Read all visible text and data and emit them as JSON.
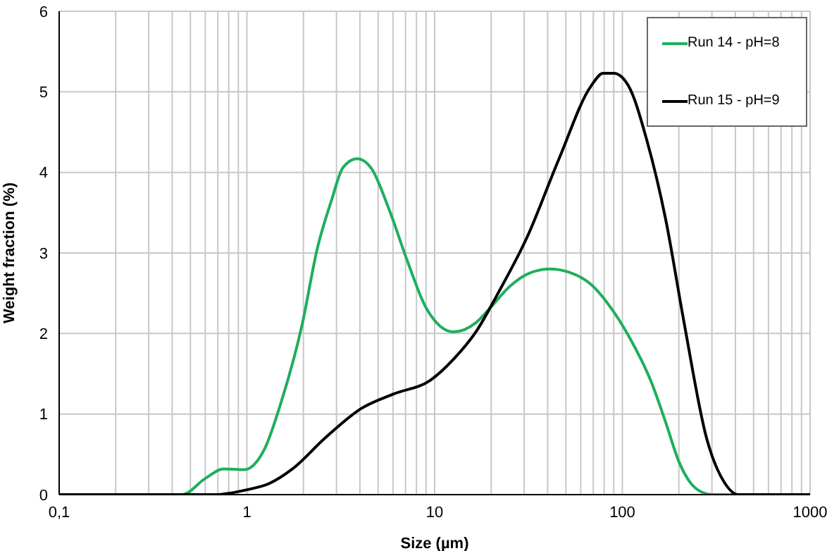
{
  "chart_data": {
    "type": "line",
    "xlabel": "Size (µm)",
    "ylabel": "Weight fraction (%)",
    "log": "x",
    "xlim": [
      0.1,
      1000
    ],
    "xticks": [
      {
        "value": 0.1,
        "label": "0,1"
      },
      {
        "value": 0.2,
        "label": null
      },
      {
        "value": 0.3,
        "label": null
      },
      {
        "value": 0.4,
        "label": null
      },
      {
        "value": 0.5,
        "label": null
      },
      {
        "value": 0.6,
        "label": null
      },
      {
        "value": 0.7,
        "label": null
      },
      {
        "value": 0.8,
        "label": null
      },
      {
        "value": 0.9,
        "label": null
      },
      1,
      {
        "value": 2,
        "label": null
      },
      {
        "value": 3,
        "label": null
      },
      {
        "value": 4,
        "label": null
      },
      {
        "value": 5,
        "label": null
      },
      {
        "value": 6,
        "label": null
      },
      {
        "value": 7,
        "label": null
      },
      {
        "value": 8,
        "label": null
      },
      {
        "value": 9,
        "label": null
      },
      10,
      {
        "value": 20,
        "label": null
      },
      {
        "value": 30,
        "label": null
      },
      {
        "value": 40,
        "label": null
      },
      {
        "value": 50,
        "label": null
      },
      {
        "value": 60,
        "label": null
      },
      {
        "value": 70,
        "label": null
      },
      {
        "value": 80,
        "label": null
      },
      {
        "value": 90,
        "label": null
      },
      100,
      {
        "value": 200,
        "label": null
      },
      {
        "value": 300,
        "label": null
      },
      {
        "value": 400,
        "label": null
      },
      {
        "value": 500,
        "label": null
      },
      {
        "value": 600,
        "label": null
      },
      {
        "value": 700,
        "label": null
      },
      {
        "value": 800,
        "label": null
      },
      {
        "value": 900,
        "label": null
      },
      1000
    ],
    "ylim": [
      0,
      6
    ],
    "yticks": [
      0,
      1,
      2,
      3,
      4,
      5,
      6
    ],
    "grid": true,
    "legend": "top right",
    "marker": "none",
    "line_style": "solid",
    "series": [
      {
        "name": "Run 14 - pH=8",
        "color": "#1fae5f",
        "x": [
          0.1,
          0.45,
          0.6,
          0.75,
          0.97,
          1.1,
          1.25,
          1.5,
          1.96,
          2.38,
          2.82,
          3.25,
          3.86,
          4.57,
          5.72,
          7.16,
          9,
          12.6,
          16.7,
          19.8,
          25,
          32,
          41,
          52,
          68,
          85,
          108,
          143,
          170,
          200,
          230,
          265,
          300,
          1000
        ],
        "values": [
          0,
          0,
          0.2,
          0.32,
          0.31,
          0.38,
          0.58,
          1.1,
          2.09,
          3.07,
          3.65,
          4.06,
          4.17,
          4.06,
          3.54,
          2.9,
          2.32,
          2.02,
          2.14,
          2.32,
          2.58,
          2.75,
          2.8,
          2.76,
          2.61,
          2.35,
          1.97,
          1.39,
          0.9,
          0.41,
          0.15,
          0.03,
          0,
          0
        ]
      },
      {
        "name": "Run 15 - pH=9",
        "color": "#000000",
        "x": [
          0.1,
          0.67,
          1,
          1.32,
          1.75,
          2.6,
          4.07,
          6.05,
          9.5,
          12.6,
          16.7,
          22,
          31,
          46,
          68,
          79,
          90,
          108,
          135,
          170,
          213,
          281,
          352,
          415,
          1000
        ],
        "values": [
          0,
          0,
          0.06,
          0.14,
          0.32,
          0.7,
          1.07,
          1.25,
          1.42,
          1.68,
          2.03,
          2.52,
          3.19,
          4.17,
          5.07,
          5.23,
          5.23,
          5.07,
          4.4,
          3.42,
          2.14,
          0.7,
          0.14,
          0,
          0
        ]
      }
    ]
  }
}
